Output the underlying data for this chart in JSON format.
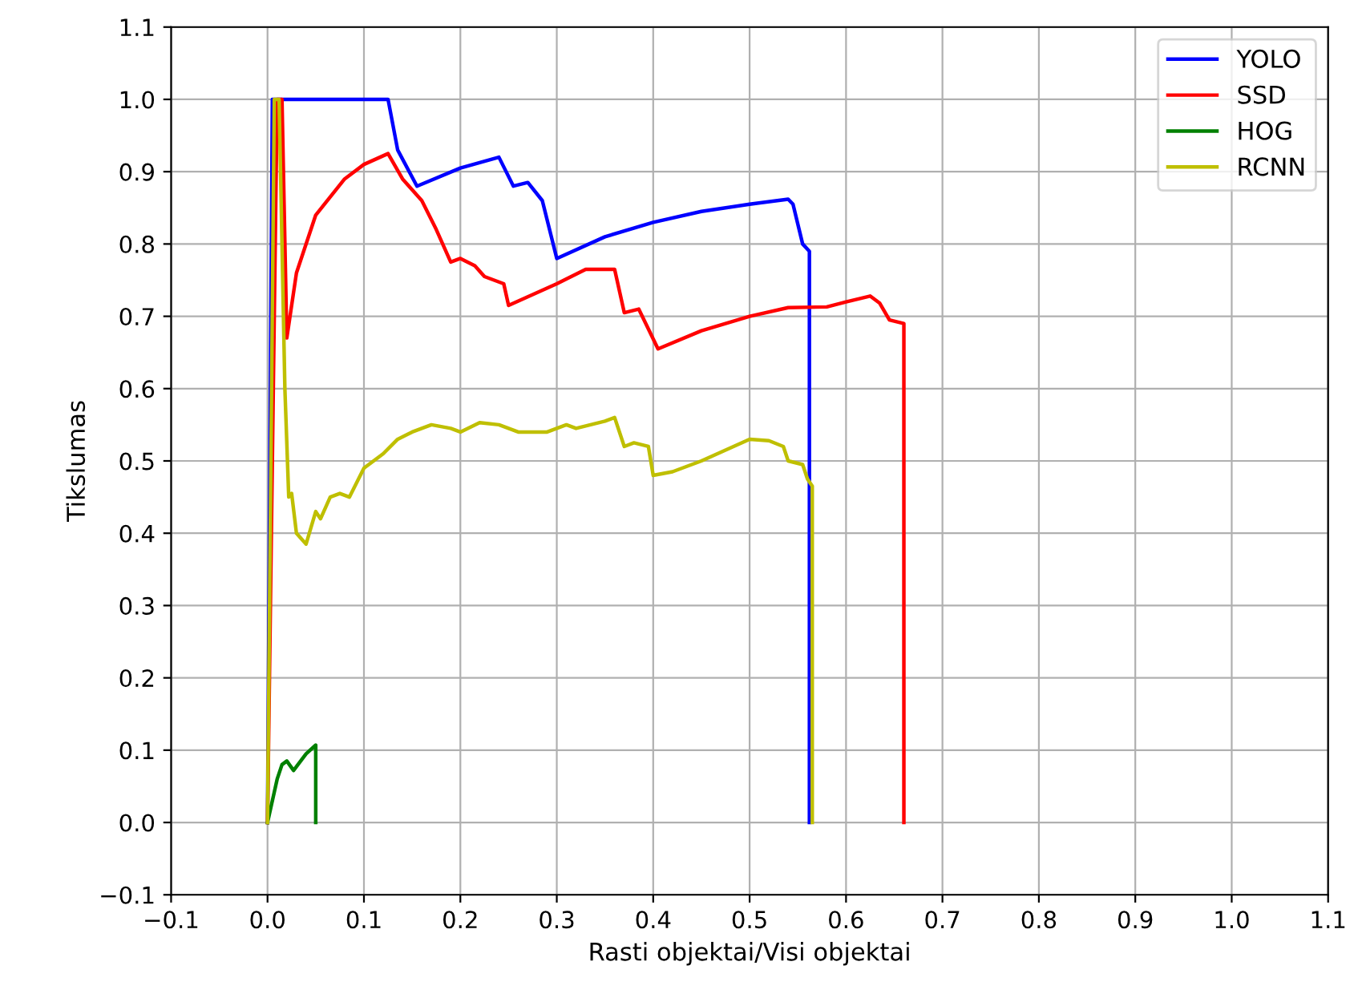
{
  "chart_data": {
    "type": "line",
    "xlabel": "Rasti objektai/Visi objektai",
    "ylabel": "Tikslumas",
    "xlim": [
      -0.1,
      1.1
    ],
    "ylim": [
      -0.1,
      1.1
    ],
    "xticks": [
      {
        "value": -0.1,
        "label": "−0.1"
      },
      {
        "value": 0,
        "label": "0.0"
      },
      0.1,
      0.2,
      0.3,
      0.4,
      0.5,
      0.6,
      0.7,
      0.8,
      0.9,
      {
        "value": 1,
        "label": "1.0"
      },
      1.1
    ],
    "yticks": [
      {
        "value": -0.1,
        "label": "−0.1"
      },
      {
        "value": 0,
        "label": "0.0"
      },
      0.1,
      0.2,
      0.3,
      0.4,
      0.5,
      0.6,
      0.7,
      0.8,
      0.9,
      {
        "value": 1,
        "label": "1.0"
      },
      1.1
    ],
    "grid": true,
    "legend": "top right",
    "marker": "none",
    "line_style": "solid",
    "series": [
      {
        "name": "YOLO",
        "color": "#0000ff",
        "x": [
          0,
          0.005,
          0.125,
          0.135,
          0.155,
          0.2,
          0.24,
          0.255,
          0.27,
          0.285,
          0.3,
          0.35,
          0.4,
          0.45,
          0.5,
          0.54,
          0.545,
          0.555,
          0.562,
          0.562
        ],
        "values": [
          0,
          1.0,
          1.0,
          0.93,
          0.88,
          0.905,
          0.92,
          0.88,
          0.885,
          0.86,
          0.78,
          0.81,
          0.83,
          0.845,
          0.855,
          0.862,
          0.855,
          0.8,
          0.79,
          0
        ]
      },
      {
        "name": "SSD",
        "color": "#ff0000",
        "x": [
          0,
          0.01,
          0.015,
          0.02,
          0.03,
          0.05,
          0.08,
          0.1,
          0.125,
          0.14,
          0.16,
          0.175,
          0.19,
          0.2,
          0.215,
          0.225,
          0.245,
          0.25,
          0.3,
          0.33,
          0.36,
          0.37,
          0.385,
          0.405,
          0.45,
          0.5,
          0.54,
          0.58,
          0.6,
          0.625,
          0.635,
          0.645,
          0.66,
          0.66
        ],
        "values": [
          0,
          1.0,
          1.0,
          0.67,
          0.76,
          0.84,
          0.89,
          0.91,
          0.925,
          0.89,
          0.86,
          0.82,
          0.775,
          0.78,
          0.77,
          0.755,
          0.745,
          0.715,
          0.745,
          0.765,
          0.765,
          0.705,
          0.71,
          0.655,
          0.68,
          0.7,
          0.712,
          0.713,
          0.72,
          0.728,
          0.718,
          0.695,
          0.69,
          0
        ]
      },
      {
        "name": "HOG",
        "color": "#008000",
        "x": [
          0,
          0.01,
          0.015,
          0.02,
          0.027,
          0.04,
          0.05,
          0.05
        ],
        "values": [
          0,
          0.06,
          0.08,
          0.085,
          0.072,
          0.095,
          0.107,
          0
        ]
      },
      {
        "name": "RCNN",
        "color": "#bfbf00",
        "x": [
          0,
          0.007,
          0.012,
          0.018,
          0.022,
          0.025,
          0.03,
          0.04,
          0.05,
          0.055,
          0.065,
          0.075,
          0.085,
          0.1,
          0.12,
          0.135,
          0.15,
          0.17,
          0.19,
          0.2,
          0.22,
          0.24,
          0.26,
          0.29,
          0.31,
          0.32,
          0.35,
          0.36,
          0.37,
          0.38,
          0.395,
          0.4,
          0.42,
          0.45,
          0.5,
          0.52,
          0.535,
          0.54,
          0.555,
          0.56,
          0.565,
          0.565
        ],
        "values": [
          0,
          1.0,
          1.0,
          0.6,
          0.45,
          0.455,
          0.4,
          0.385,
          0.43,
          0.42,
          0.45,
          0.455,
          0.45,
          0.49,
          0.51,
          0.53,
          0.54,
          0.55,
          0.545,
          0.54,
          0.553,
          0.55,
          0.54,
          0.54,
          0.55,
          0.545,
          0.555,
          0.56,
          0.52,
          0.525,
          0.52,
          0.48,
          0.485,
          0.5,
          0.53,
          0.528,
          0.52,
          0.5,
          0.495,
          0.475,
          0.465,
          0
        ]
      }
    ]
  }
}
